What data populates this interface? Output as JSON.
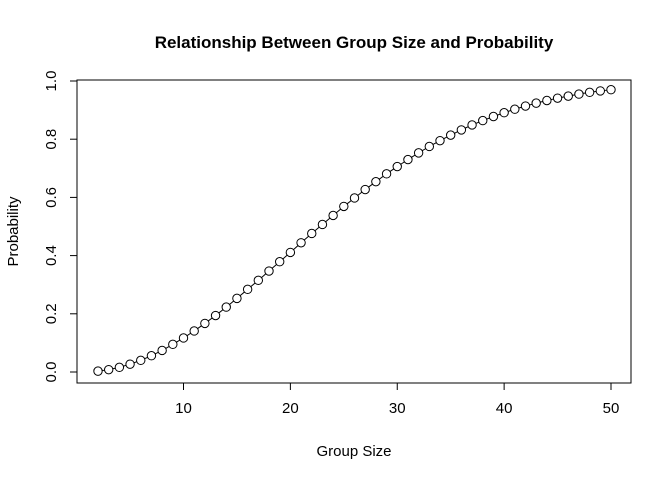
{
  "chart_data": {
    "type": "line",
    "title": "Relationship Between Group Size and Probability",
    "xlabel": "Group Size",
    "ylabel": "Probability",
    "xlim": [
      2,
      50
    ],
    "ylim": [
      0,
      1
    ],
    "x_ticks": [
      10,
      20,
      30,
      40,
      50
    ],
    "y_ticks": [
      0.0,
      0.2,
      0.4,
      0.6,
      0.8,
      1.0
    ],
    "y_tick_labels": [
      "0.0",
      "0.2",
      "0.4",
      "0.6",
      "0.8",
      "1.0"
    ],
    "x_tick_labels": [
      "10",
      "20",
      "30",
      "40",
      "50"
    ],
    "grid": false,
    "legend": "none",
    "marker": "open-circle",
    "line_color": "#000000",
    "series": [
      {
        "x": [
          2,
          3,
          4,
          5,
          6,
          7,
          8,
          9,
          10,
          11,
          12,
          13,
          14,
          15,
          16,
          17,
          18,
          19,
          20,
          21,
          22,
          23,
          24,
          25,
          26,
          27,
          28,
          29,
          30,
          31,
          32,
          33,
          34,
          35,
          36,
          37,
          38,
          39,
          40,
          41,
          42,
          43,
          44,
          45,
          46,
          47,
          48,
          49,
          50
        ],
        "values": [
          0.003,
          0.008,
          0.016,
          0.027,
          0.04,
          0.056,
          0.074,
          0.095,
          0.117,
          0.141,
          0.167,
          0.194,
          0.223,
          0.253,
          0.284,
          0.315,
          0.347,
          0.379,
          0.411,
          0.444,
          0.476,
          0.507,
          0.538,
          0.569,
          0.598,
          0.627,
          0.654,
          0.681,
          0.706,
          0.73,
          0.753,
          0.775,
          0.795,
          0.814,
          0.832,
          0.849,
          0.864,
          0.878,
          0.891,
          0.903,
          0.914,
          0.924,
          0.933,
          0.941,
          0.948,
          0.955,
          0.961,
          0.966,
          0.97
        ]
      }
    ]
  }
}
